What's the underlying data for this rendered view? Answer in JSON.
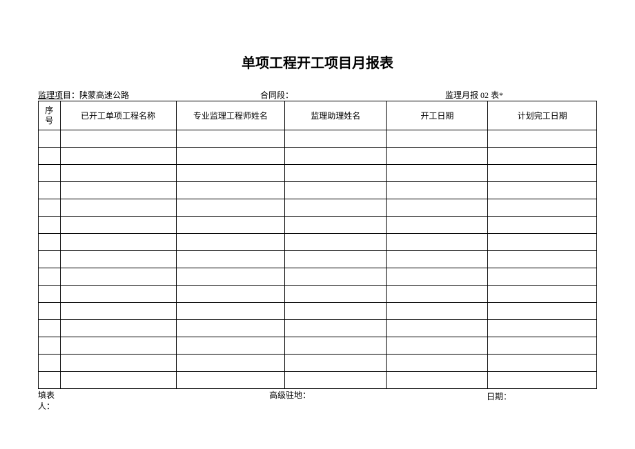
{
  "title": "单项工程开工项目月报表",
  "info": {
    "projectLabel": "监理项",
    "projectLabel2": "目：陕蒙高速公路",
    "contractLabel": "合同段：",
    "reportLabel": "监理月报 02 表*"
  },
  "table": {
    "headers": {
      "seq": "序号",
      "name": "已开工单项工程名称",
      "engineer": "专业监理工程师姓名",
      "assistant": "监理助理姓名",
      "startDate": "开工日期",
      "planDate": "计划完工日期"
    },
    "rowCount": 15
  },
  "footer": {
    "filler": "填表人：",
    "resident": "高级驻地：",
    "date": "日期："
  },
  "style": {
    "borderColor": "#000000",
    "background": "#ffffff",
    "titleFontSize": 20,
    "bodyFontSize": 12
  }
}
